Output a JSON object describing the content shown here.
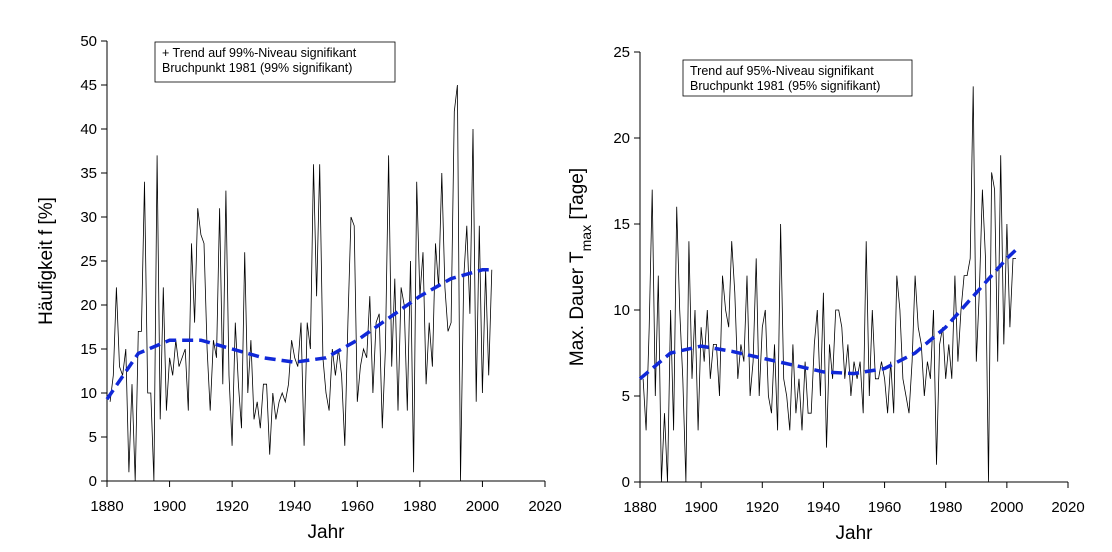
{
  "chart_data": [
    {
      "type": "line",
      "x_label": "Jahr",
      "y_label": "Häufigkeit  f [%]",
      "annotations": [
        "+ Trend auf 99%-Niveau signifikant",
        "Bruchpunkt 1981 (99% signifikant)"
      ],
      "xlim": [
        1880,
        2020
      ],
      "xticks": [
        1880,
        1900,
        1920,
        1940,
        1960,
        1980,
        2000,
        2020
      ],
      "ylim": [
        0,
        50
      ],
      "yticks": [
        0,
        5,
        10,
        15,
        20,
        25,
        30,
        35,
        40,
        45,
        50
      ],
      "series": [
        {
          "color": "#000000",
          "dashed": false,
          "x": [
            1881,
            1882,
            1883,
            1884,
            1885,
            1886,
            1887,
            1888,
            1889,
            1890,
            1891,
            1892,
            1893,
            1894,
            1895,
            1896,
            1897,
            1898,
            1899,
            1900,
            1901,
            1902,
            1903,
            1904,
            1905,
            1906,
            1907,
            1908,
            1909,
            1910,
            1911,
            1912,
            1913,
            1914,
            1915,
            1916,
            1917,
            1918,
            1919,
            1920,
            1921,
            1922,
            1923,
            1924,
            1925,
            1926,
            1927,
            1928,
            1929,
            1930,
            1931,
            1932,
            1933,
            1934,
            1935,
            1936,
            1937,
            1938,
            1939,
            1940,
            1941,
            1942,
            1943,
            1944,
            1945,
            1946,
            1947,
            1948,
            1949,
            1950,
            1951,
            1952,
            1953,
            1954,
            1955,
            1956,
            1957,
            1958,
            1959,
            1960,
            1961,
            1962,
            1963,
            1964,
            1965,
            1966,
            1967,
            1968,
            1969,
            1970,
            1971,
            1972,
            1973,
            1974,
            1975,
            1976,
            1977,
            1978,
            1979,
            1980,
            1981,
            1982,
            1983,
            1984,
            1985,
            1986,
            1987,
            1988,
            1989,
            1990,
            1991,
            1992,
            1993,
            1994,
            1995,
            1996,
            1997,
            1998,
            1999,
            2000,
            2001,
            2002,
            2003
          ],
          "values": [
            9,
            12,
            22,
            13,
            12,
            15,
            1,
            11,
            0,
            17,
            17,
            34,
            10,
            10,
            0,
            37,
            7,
            22,
            8,
            14,
            12,
            16,
            13,
            14,
            15,
            8,
            27,
            18,
            31,
            28,
            27,
            15,
            8,
            16,
            14,
            31,
            11,
            33,
            12,
            4,
            18,
            11,
            6,
            26,
            10,
            16,
            7,
            9,
            6,
            11,
            11,
            3,
            10,
            7,
            9,
            10,
            9,
            11,
            16,
            14,
            13,
            18,
            4,
            18,
            15,
            36,
            21,
            36,
            14,
            10,
            8,
            15,
            12,
            15,
            12,
            4,
            18,
            30,
            29,
            9,
            13,
            15,
            14,
            21,
            10,
            18,
            19,
            6,
            15,
            37,
            13,
            23,
            8,
            22,
            20,
            8,
            25,
            1,
            34,
            21,
            26,
            11,
            18,
            13,
            27,
            22,
            35,
            22,
            17,
            18,
            42,
            45,
            0,
            23,
            29,
            19,
            40,
            9,
            29,
            10,
            24,
            12,
            24
          ]
        },
        {
          "color": "#1028d8",
          "dashed": true,
          "x": [
            1880,
            1890,
            1900,
            1910,
            1920,
            1930,
            1940,
            1950,
            1960,
            1970,
            1980,
            1990,
            2000,
            2003
          ],
          "values": [
            9.3,
            14.5,
            16,
            16,
            15,
            14,
            13.5,
            14,
            16,
            18.5,
            21,
            23,
            24,
            24
          ]
        }
      ]
    },
    {
      "type": "line",
      "x_label": "Jahr",
      "y_label": [
        "Max. Dauer T",
        "max",
        " [Tage]"
      ],
      "annotations": [
        "Trend  auf 95%-Niveau signifikant",
        "Bruchpunkt 1981 (95% signifikant)"
      ],
      "xlim": [
        1880,
        2020
      ],
      "xticks": [
        1880,
        1900,
        1920,
        1940,
        1960,
        1980,
        2000,
        2020
      ],
      "ylim": [
        0,
        25
      ],
      "yticks": [
        0,
        5,
        10,
        15,
        20,
        25
      ],
      "series": [
        {
          "color": "#000000",
          "dashed": false,
          "x": [
            1881,
            1882,
            1883,
            1884,
            1885,
            1886,
            1887,
            1888,
            1889,
            1890,
            1891,
            1892,
            1893,
            1894,
            1895,
            1896,
            1897,
            1898,
            1899,
            1900,
            1901,
            1902,
            1903,
            1904,
            1905,
            1906,
            1907,
            1908,
            1909,
            1910,
            1911,
            1912,
            1913,
            1914,
            1915,
            1916,
            1917,
            1918,
            1919,
            1920,
            1921,
            1922,
            1923,
            1924,
            1925,
            1926,
            1927,
            1928,
            1929,
            1930,
            1931,
            1932,
            1933,
            1934,
            1935,
            1936,
            1937,
            1938,
            1939,
            1940,
            1941,
            1942,
            1943,
            1944,
            1945,
            1946,
            1947,
            1948,
            1949,
            1950,
            1951,
            1952,
            1953,
            1954,
            1955,
            1956,
            1957,
            1958,
            1959,
            1960,
            1961,
            1962,
            1963,
            1964,
            1965,
            1966,
            1967,
            1968,
            1969,
            1970,
            1971,
            1972,
            1973,
            1974,
            1975,
            1976,
            1977,
            1978,
            1979,
            1980,
            1981,
            1982,
            1983,
            1984,
            1985,
            1986,
            1987,
            1988,
            1989,
            1990,
            1991,
            1992,
            1993,
            1994,
            1995,
            1996,
            1997,
            1998,
            1999,
            2000,
            2001,
            2002,
            2003
          ],
          "values": [
            6,
            3,
            9,
            17,
            5,
            12,
            0,
            4,
            0,
            10,
            3,
            16,
            10,
            6,
            0,
            14,
            6,
            10,
            3,
            9,
            7,
            10,
            6,
            8,
            8,
            5,
            12,
            10,
            9,
            14,
            11,
            6,
            8,
            7,
            12,
            5,
            7,
            13,
            5,
            9,
            10,
            5,
            4,
            8,
            3,
            15,
            6,
            5,
            3,
            8,
            4,
            6,
            3,
            7,
            4,
            4,
            8,
            10,
            5,
            11,
            2,
            8,
            6,
            10,
            10,
            9,
            6,
            8,
            5,
            7,
            6,
            7,
            4,
            14,
            5,
            10,
            6,
            6,
            7,
            6,
            4,
            7,
            4,
            12,
            10,
            6,
            5,
            4,
            7,
            12,
            9,
            8,
            5,
            7,
            6,
            10,
            1,
            8,
            9,
            6,
            8,
            6,
            12,
            7,
            10,
            12,
            12,
            13,
            23,
            7,
            11,
            17,
            13,
            0,
            18,
            17,
            7,
            19,
            8,
            15,
            9,
            13,
            13
          ]
        },
        {
          "color": "#1028d8",
          "dashed": true,
          "x": [
            1880,
            1890,
            1900,
            1910,
            1920,
            1930,
            1940,
            1950,
            1960,
            1970,
            1980,
            1990,
            2000,
            2003
          ],
          "values": [
            6,
            7.5,
            7.9,
            7.6,
            7.2,
            6.8,
            6.4,
            6.3,
            6.6,
            7.5,
            9,
            11,
            13,
            13.5
          ]
        }
      ]
    }
  ]
}
